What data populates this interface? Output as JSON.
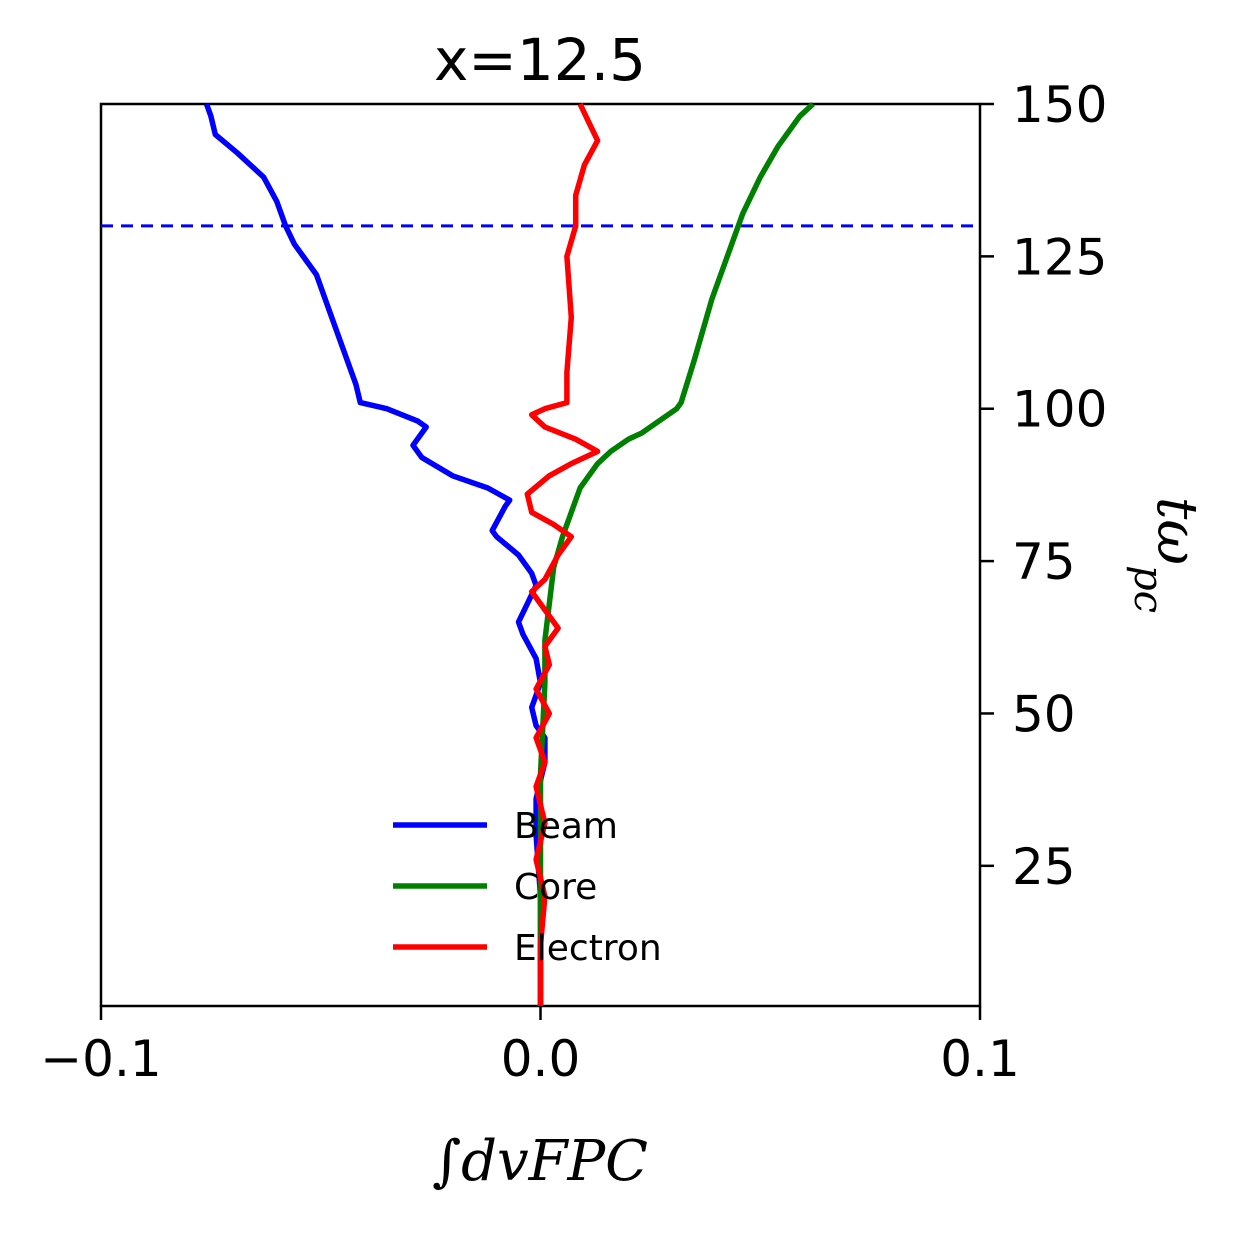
{
  "chart_data": {
    "type": "line",
    "title": "x=12.5",
    "xlabel": "∫dvFPC",
    "ylabel": "tω_pc",
    "xlim": [
      -0.1,
      0.1
    ],
    "ylim": [
      2,
      150
    ],
    "xticks": [
      -0.1,
      0.0,
      0.1
    ],
    "xtick_labels": [
      "−0.1",
      "0.0",
      "0.1"
    ],
    "yticks": [
      25,
      50,
      75,
      100,
      125,
      150
    ],
    "ytick_labels": [
      "25",
      "50",
      "75",
      "100",
      "125",
      "150"
    ],
    "y_axis_side": "right",
    "grid": false,
    "legend_placement": "lower-center",
    "hline": {
      "y": 130,
      "color": "#0000ff",
      "style": "dashed"
    },
    "series": [
      {
        "name": "Beam",
        "color": "#0000ff",
        "points": [
          [
            0.0,
            2
          ],
          [
            0.0,
            10
          ],
          [
            0.0,
            20
          ],
          [
            -0.001,
            30
          ],
          [
            -0.001,
            36
          ],
          [
            0.001,
            42
          ],
          [
            0.001,
            46
          ],
          [
            -0.001,
            48
          ],
          [
            -0.002,
            51
          ],
          [
            0.0,
            55
          ],
          [
            -0.001,
            59
          ],
          [
            -0.004,
            63
          ],
          [
            -0.005,
            65
          ],
          [
            -0.003,
            68
          ],
          [
            -0.001,
            71
          ],
          [
            -0.002,
            73
          ],
          [
            -0.005,
            76
          ],
          [
            -0.01,
            79
          ],
          [
            -0.011,
            80
          ],
          [
            -0.008,
            84
          ],
          [
            -0.007,
            85
          ],
          [
            -0.012,
            87
          ],
          [
            -0.02,
            89
          ],
          [
            -0.027,
            92
          ],
          [
            -0.029,
            94
          ],
          [
            -0.027,
            96
          ],
          [
            -0.026,
            97
          ],
          [
            -0.028,
            98
          ],
          [
            -0.035,
            100
          ],
          [
            -0.041,
            101
          ],
          [
            -0.042,
            104
          ],
          [
            -0.045,
            110
          ],
          [
            -0.048,
            116
          ],
          [
            -0.051,
            122
          ],
          [
            -0.056,
            127
          ],
          [
            -0.058,
            130
          ],
          [
            -0.06,
            134
          ],
          [
            -0.063,
            138
          ],
          [
            -0.069,
            142
          ],
          [
            -0.074,
            145
          ],
          [
            -0.075,
            148
          ],
          [
            -0.076,
            150
          ]
        ]
      },
      {
        "name": "Core",
        "color": "#008000",
        "points": [
          [
            0.0,
            2
          ],
          [
            0.0,
            20
          ],
          [
            0.0,
            40
          ],
          [
            0.001,
            55
          ],
          [
            0.001,
            62
          ],
          [
            0.002,
            68
          ],
          [
            0.003,
            74
          ],
          [
            0.005,
            79
          ],
          [
            0.007,
            83
          ],
          [
            0.009,
            87
          ],
          [
            0.011,
            89
          ],
          [
            0.013,
            91
          ],
          [
            0.016,
            93
          ],
          [
            0.02,
            95
          ],
          [
            0.023,
            96
          ],
          [
            0.027,
            98
          ],
          [
            0.031,
            100
          ],
          [
            0.032,
            101
          ],
          [
            0.035,
            108
          ],
          [
            0.039,
            118
          ],
          [
            0.043,
            126
          ],
          [
            0.046,
            132
          ],
          [
            0.05,
            138
          ],
          [
            0.054,
            143
          ],
          [
            0.059,
            148
          ],
          [
            0.062,
            150
          ]
        ]
      },
      {
        "name": "Electron",
        "color": "#ff0000",
        "points": [
          [
            0.0,
            2
          ],
          [
            0.0,
            12
          ],
          [
            0.001,
            20
          ],
          [
            -0.001,
            26
          ],
          [
            0.001,
            32
          ],
          [
            -0.001,
            38
          ],
          [
            0.001,
            42
          ],
          [
            -0.001,
            46
          ],
          [
            0.002,
            50
          ],
          [
            -0.001,
            54
          ],
          [
            0.002,
            58
          ],
          [
            0.001,
            61
          ],
          [
            0.004,
            64
          ],
          [
            0.001,
            67
          ],
          [
            -0.002,
            70
          ],
          [
            0.001,
            72
          ],
          [
            0.004,
            76
          ],
          [
            0.007,
            79
          ],
          [
            0.003,
            81
          ],
          [
            -0.002,
            83
          ],
          [
            -0.003,
            86
          ],
          [
            0.002,
            89
          ],
          [
            0.007,
            91
          ],
          [
            0.013,
            93
          ],
          [
            0.008,
            95
          ],
          [
            0.001,
            97
          ],
          [
            -0.002,
            99
          ],
          [
            0.001,
            100
          ],
          [
            0.006,
            101
          ],
          [
            0.006,
            106
          ],
          [
            0.007,
            115
          ],
          [
            0.006,
            125
          ],
          [
            0.008,
            130
          ],
          [
            0.008,
            135
          ],
          [
            0.01,
            140
          ],
          [
            0.013,
            144
          ],
          [
            0.011,
            147
          ],
          [
            0.009,
            150
          ]
        ]
      }
    ]
  }
}
